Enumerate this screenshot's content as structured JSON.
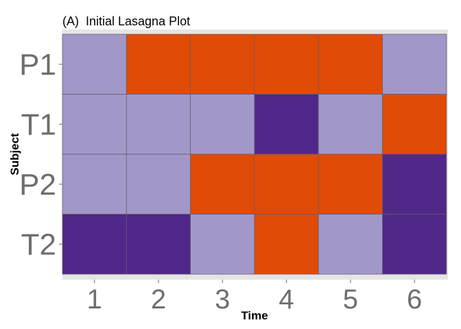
{
  "chart_data": {
    "type": "heatmap",
    "title": "(A)  Initial Lasagna Plot",
    "xlabel": "Time",
    "ylabel": "Subject",
    "x": [
      1,
      2,
      3,
      4,
      5,
      6
    ],
    "x_tick_labels": [
      "1",
      "2",
      "3",
      "4",
      "5",
      "6"
    ],
    "subjects": [
      "P1",
      "T1",
      "P2",
      "T2"
    ],
    "cell_colors": {
      "lavender": "#a198c9",
      "orange": "#e04b07",
      "purple": "#4f2889"
    },
    "cells": [
      [
        "lavender",
        "orange",
        "orange",
        "orange",
        "orange",
        "lavender"
      ],
      [
        "lavender",
        "lavender",
        "lavender",
        "purple",
        "lavender",
        "orange"
      ],
      [
        "lavender",
        "lavender",
        "orange",
        "orange",
        "orange",
        "purple"
      ],
      [
        "purple",
        "purple",
        "lavender",
        "orange",
        "lavender",
        "purple"
      ]
    ]
  }
}
